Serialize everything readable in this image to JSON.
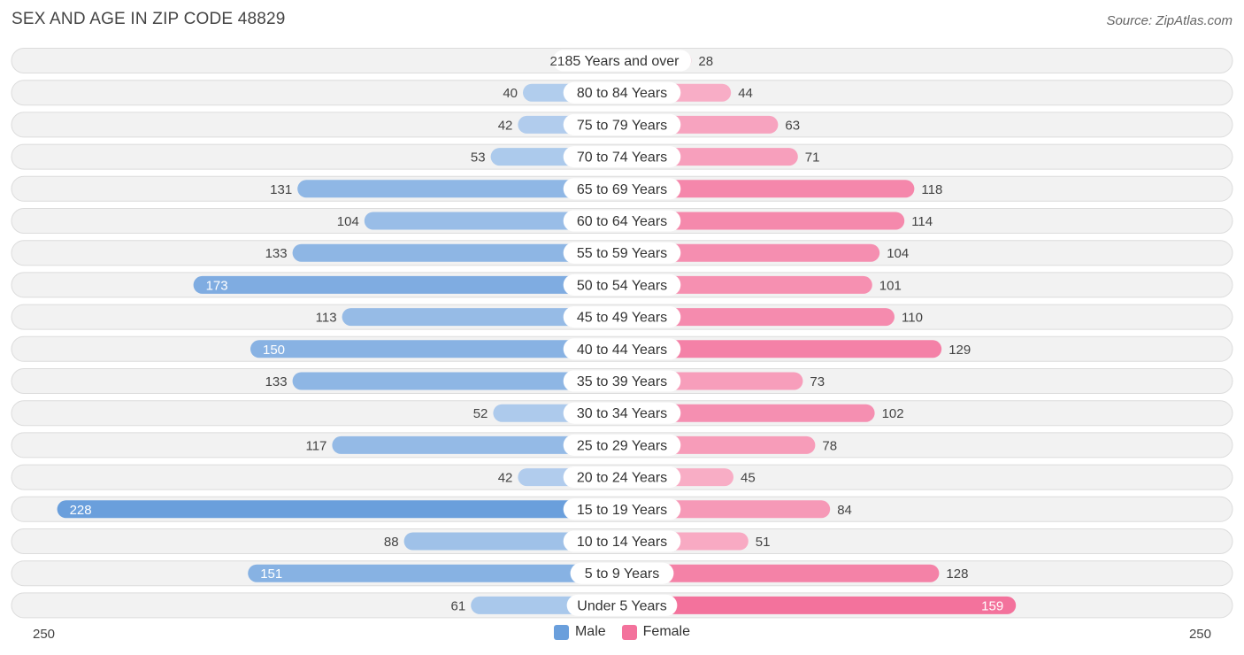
{
  "header": {
    "title": "SEX AND AGE IN ZIP CODE 48829",
    "source": "Source: ZipAtlas.com"
  },
  "legend": {
    "male_label": "Male",
    "female_label": "Female",
    "male_color": "#6a9fdc",
    "female_color": "#f3729c"
  },
  "chart_data": {
    "type": "bar",
    "orientation": "horizontal-diverging",
    "categories": [
      "85 Years and over",
      "80 to 84 Years",
      "75 to 79 Years",
      "70 to 74 Years",
      "65 to 69 Years",
      "60 to 64 Years",
      "55 to 59 Years",
      "50 to 54 Years",
      "45 to 49 Years",
      "40 to 44 Years",
      "35 to 39 Years",
      "30 to 34 Years",
      "25 to 29 Years",
      "20 to 24 Years",
      "15 to 19 Years",
      "10 to 14 Years",
      "5 to 9 Years",
      "Under 5 Years"
    ],
    "series": [
      {
        "name": "Male",
        "values": [
          21,
          40,
          42,
          53,
          131,
          104,
          133,
          173,
          113,
          150,
          133,
          52,
          117,
          42,
          228,
          88,
          151,
          61
        ]
      },
      {
        "name": "Female",
        "values": [
          28,
          44,
          63,
          71,
          118,
          114,
          104,
          101,
          110,
          129,
          73,
          102,
          78,
          45,
          84,
          51,
          128,
          159
        ]
      }
    ],
    "axis": {
      "left_label": "250",
      "right_label": "250",
      "max": 250
    }
  }
}
